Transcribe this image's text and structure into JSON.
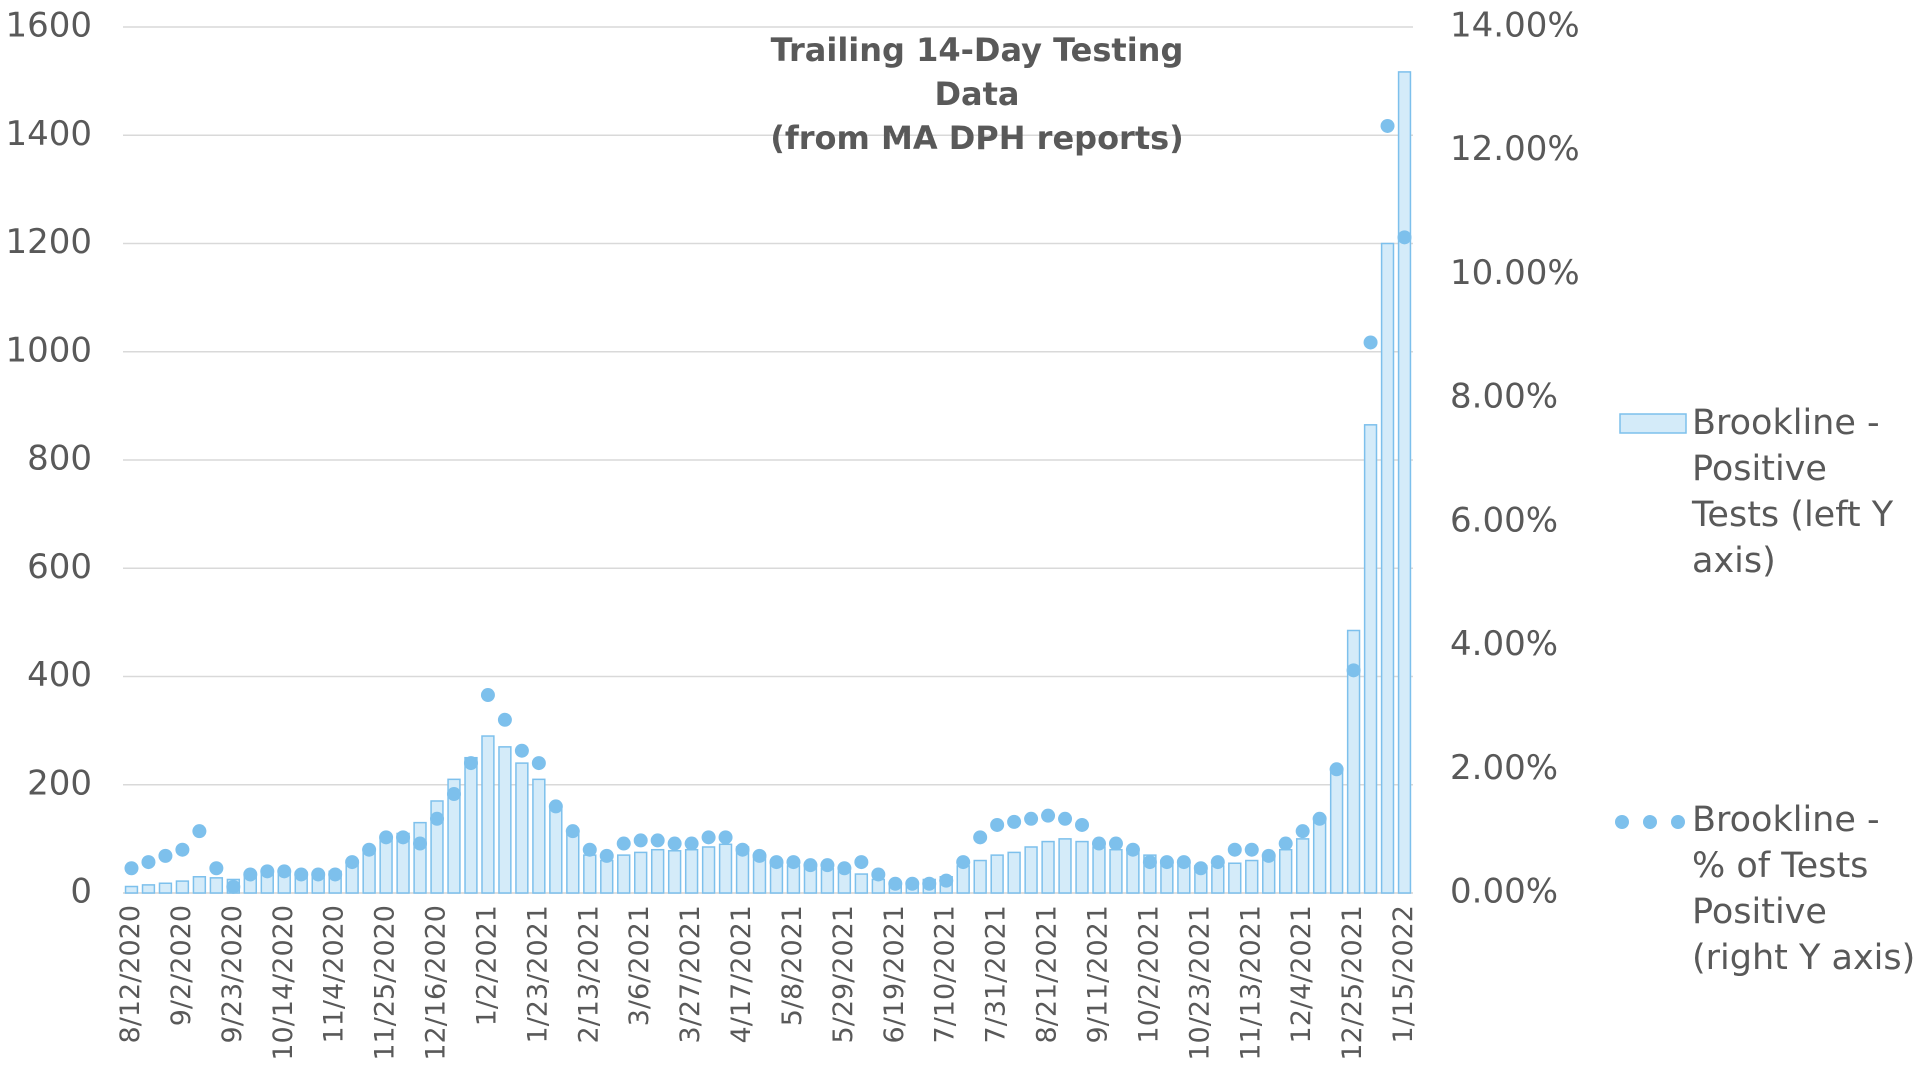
{
  "chart_data": {
    "type": "bar",
    "title": "Trailing 14-Day Testing Data\n(from MA DPH reports)",
    "categories": [
      "8/12/2020",
      null,
      null,
      "9/2/2020",
      null,
      null,
      "9/23/2020",
      null,
      null,
      "10/14/2020",
      null,
      null,
      "11/4/2020",
      null,
      null,
      "11/25/2020",
      null,
      null,
      "12/16/2020",
      null,
      null,
      "1/2/2021",
      null,
      null,
      "1/23/2021",
      null,
      null,
      "2/13/2021",
      null,
      null,
      "3/6/2021",
      null,
      null,
      "3/27/2021",
      null,
      null,
      "4/17/2021",
      null,
      null,
      "5/8/2021",
      null,
      null,
      "5/29/2021",
      null,
      null,
      "6/19/2021",
      null,
      null,
      "7/10/2021",
      null,
      null,
      "7/31/2021",
      null,
      null,
      "8/21/2021",
      null,
      null,
      "9/11/2021",
      null,
      null,
      "10/2/2021",
      null,
      null,
      "10/23/2021",
      null,
      null,
      "11/13/2021",
      null,
      null,
      "12/4/2021",
      null,
      null,
      "12/25/2021",
      null,
      null,
      "1/15/2022"
    ],
    "series": [
      {
        "name": "Brookline - Positive Tests (left Y axis)",
        "type": "bar",
        "color": "#d4ebf9",
        "edge_color": "#7dc0ec",
        "values": [
          12,
          15,
          18,
          22,
          30,
          28,
          25,
          30,
          35,
          35,
          38,
          32,
          40,
          60,
          80,
          100,
          110,
          130,
          170,
          210,
          250,
          290,
          270,
          240,
          210,
          160,
          110,
          70,
          60,
          70,
          75,
          80,
          78,
          80,
          85,
          90,
          85,
          65,
          55,
          50,
          48,
          45,
          40,
          35,
          25,
          20,
          20,
          25,
          30,
          50,
          60,
          70,
          75,
          85,
          95,
          100,
          95,
          85,
          80,
          75,
          70,
          60,
          55,
          50,
          50,
          55,
          60,
          70,
          80,
          100,
          140,
          230,
          485,
          865,
          1200,
          1517
        ]
      },
      {
        "name": "Brookline - % of Tests Positive (right Y axis)",
        "type": "scatter",
        "axis": "y2",
        "color": "#7dc0ec",
        "values": [
          0.4,
          0.5,
          0.6,
          0.7,
          1.0,
          0.4,
          0.1,
          0.3,
          0.35,
          0.35,
          0.3,
          0.3,
          0.3,
          0.5,
          0.7,
          0.9,
          0.9,
          0.8,
          1.2,
          1.6,
          2.1,
          3.2,
          2.8,
          2.3,
          2.1,
          1.4,
          1.0,
          0.7,
          0.6,
          0.8,
          0.85,
          0.85,
          0.8,
          0.8,
          0.9,
          0.9,
          0.7,
          0.6,
          0.5,
          0.5,
          0.45,
          0.45,
          0.4,
          0.5,
          0.3,
          0.15,
          0.15,
          0.15,
          0.2,
          0.5,
          0.9,
          1.1,
          1.15,
          1.2,
          1.25,
          1.2,
          1.1,
          0.8,
          0.8,
          0.7,
          0.5,
          0.5,
          0.5,
          0.4,
          0.5,
          0.7,
          0.7,
          0.6,
          0.8,
          1.0,
          1.2,
          2.0,
          3.6,
          8.9,
          12.4,
          10.6
        ]
      }
    ],
    "ylim": [
      0,
      1600
    ],
    "yticks": [
      0,
      200,
      400,
      600,
      800,
      1000,
      1200,
      1400,
      1600
    ],
    "y2lim": [
      0,
      14
    ],
    "y2ticks": [
      {
        "value": 0,
        "label": "0.00%"
      },
      {
        "value": 2,
        "label": "2.00%"
      },
      {
        "value": 4,
        "label": "4.00%"
      },
      {
        "value": 6,
        "label": "6.00%"
      },
      {
        "value": 8,
        "label": "8.00%"
      },
      {
        "value": 10,
        "label": "10.00%"
      },
      {
        "value": 12,
        "label": "12.00%"
      },
      {
        "value": 14,
        "label": "14.00%"
      }
    ],
    "grid": true,
    "legend": "right"
  }
}
